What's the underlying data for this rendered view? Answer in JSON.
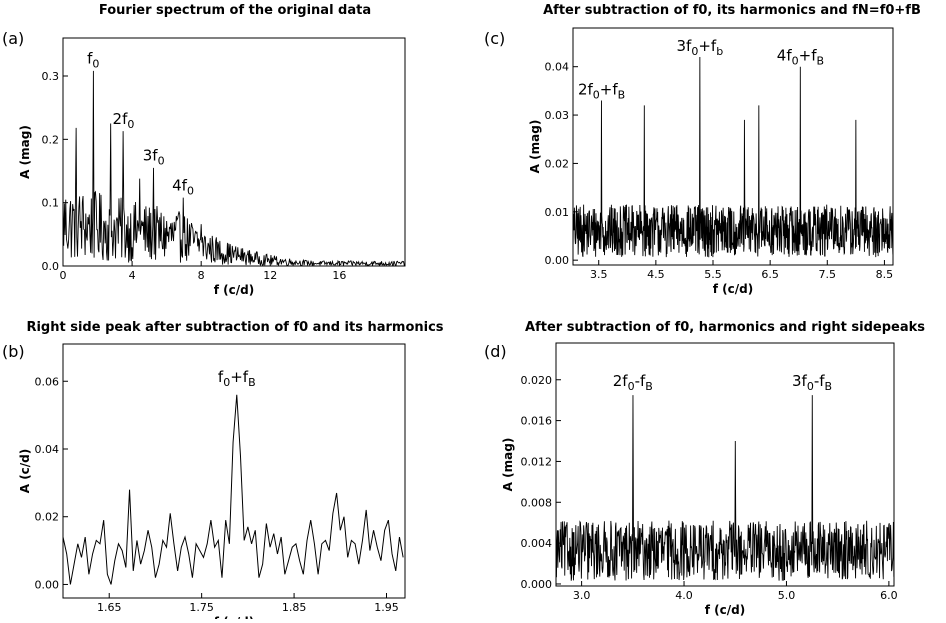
{
  "chart_data": [
    {
      "type": "line",
      "panel": "(a)",
      "title": "Fourier spectrum of the original data",
      "xlabel": "f (c/d)",
      "ylabel": "A (mag)",
      "xlim": [
        0,
        19.8
      ],
      "ylim": [
        0,
        0.36
      ],
      "xticks": [
        0,
        4,
        8,
        12,
        16
      ],
      "yticks": [
        0.0,
        0.1,
        0.2,
        0.3
      ],
      "x_tick_labels": [
        "0",
        "4",
        "8",
        "12",
        "16"
      ],
      "y_tick_labels": [
        "0.0",
        "0.1",
        "0.2",
        "0.3"
      ],
      "grid": false,
      "noise": {
        "x_start": 0.0,
        "x_end": 19.8,
        "step": 0.04,
        "decay": true,
        "amplitude": 0.13,
        "tail_floor": 0.008
      },
      "peaks": [
        {
          "x": 0.75,
          "y": 0.218
        },
        {
          "x": 1.75,
          "y": 0.308
        },
        {
          "x": 2.75,
          "y": 0.225
        },
        {
          "x": 3.5,
          "y": 0.213
        },
        {
          "x": 4.45,
          "y": 0.138
        },
        {
          "x": 5.25,
          "y": 0.155
        },
        {
          "x": 6.95,
          "y": 0.108
        },
        {
          "x": 8.0,
          "y": 0.066
        }
      ],
      "annotations": [
        {
          "base": "f",
          "sub": "0",
          "post": "",
          "post_sub": "",
          "x": 1.75,
          "y": 0.31
        },
        {
          "base": "2f",
          "sub": "0",
          "post": "",
          "post_sub": "",
          "x": 3.5,
          "y": 0.215
        },
        {
          "base": "3f",
          "sub": "0",
          "post": "",
          "post_sub": "",
          "x": 5.25,
          "y": 0.157
        },
        {
          "base": "4f",
          "sub": "0",
          "post": "",
          "post_sub": "",
          "x": 6.95,
          "y": 0.11
        }
      ]
    },
    {
      "type": "line",
      "panel": "(c)",
      "title": "After subtraction of f0, its harmonics and fN=f0+fB",
      "xlabel": "f (c/d)",
      "ylabel": "A (mag)",
      "xlim": [
        3.05,
        8.65
      ],
      "ylim": [
        -0.001,
        0.048
      ],
      "xticks": [
        3.5,
        4.5,
        5.5,
        6.5,
        7.5,
        8.5
      ],
      "yticks": [
        0.0,
        0.01,
        0.02,
        0.03,
        0.04
      ],
      "x_tick_labels": [
        "3.5",
        "4.5",
        "5.5",
        "6.5",
        "7.5",
        "8.5"
      ],
      "y_tick_labels": [
        "0.00",
        "0.01",
        "0.02",
        "0.03",
        "0.04"
      ],
      "grid": false,
      "noise": {
        "x_start": 3.05,
        "x_end": 8.65,
        "step": 0.006,
        "decay": false,
        "amplitude": 0.0115,
        "tail_floor": 0.001
      },
      "peaks": [
        {
          "x": 3.55,
          "y": 0.033
        },
        {
          "x": 4.3,
          "y": 0.032
        },
        {
          "x": 5.27,
          "y": 0.042
        },
        {
          "x": 6.05,
          "y": 0.029
        },
        {
          "x": 6.3,
          "y": 0.032
        },
        {
          "x": 7.03,
          "y": 0.04
        },
        {
          "x": 8.0,
          "y": 0.029
        }
      ],
      "annotations": [
        {
          "base": "2f",
          "sub": "0",
          "post": "+f",
          "post_sub": "B",
          "x": 3.55,
          "y": 0.033
        },
        {
          "base": "3f",
          "sub": "0",
          "post": "+f",
          "post_sub": "b",
          "x": 5.27,
          "y": 0.042
        },
        {
          "base": "4f",
          "sub": "0",
          "post": "+f",
          "post_sub": "B",
          "x": 7.03,
          "y": 0.04
        }
      ]
    },
    {
      "type": "line",
      "panel": "(b)",
      "title": "Right side peak after subtraction of f0 and its harmonics",
      "xlabel": "f (c/d)",
      "ylabel": "A (c/d)",
      "xlim": [
        1.6,
        1.97
      ],
      "ylim": [
        -0.004,
        0.071
      ],
      "xticks": [
        1.65,
        1.75,
        1.85,
        1.95
      ],
      "yticks": [
        0.0,
        0.02,
        0.04,
        0.06
      ],
      "x_tick_labels": [
        "1.65",
        "1.75",
        "1.85",
        "1.95"
      ],
      "y_tick_labels": [
        "0.00",
        "0.02",
        "0.04",
        "0.06"
      ],
      "grid": false,
      "x": [
        1.6,
        1.604,
        1.608,
        1.612,
        1.616,
        1.62,
        1.624,
        1.628,
        1.632,
        1.636,
        1.64,
        1.644,
        1.648,
        1.652,
        1.656,
        1.66,
        1.664,
        1.668,
        1.672,
        1.676,
        1.68,
        1.684,
        1.688,
        1.692,
        1.696,
        1.7,
        1.704,
        1.708,
        1.712,
        1.716,
        1.72,
        1.724,
        1.728,
        1.732,
        1.736,
        1.74,
        1.744,
        1.748,
        1.752,
        1.756,
        1.76,
        1.764,
        1.768,
        1.772,
        1.776,
        1.78,
        1.784,
        1.788,
        1.792,
        1.796,
        1.8,
        1.804,
        1.808,
        1.812,
        1.816,
        1.82,
        1.824,
        1.828,
        1.832,
        1.836,
        1.84,
        1.844,
        1.848,
        1.852,
        1.856,
        1.86,
        1.864,
        1.868,
        1.872,
        1.876,
        1.88,
        1.884,
        1.888,
        1.892,
        1.896,
        1.9,
        1.904,
        1.908,
        1.912,
        1.916,
        1.92,
        1.924,
        1.928,
        1.932,
        1.936,
        1.94,
        1.944,
        1.948,
        1.952,
        1.956,
        1.96,
        1.964,
        1.968
      ],
      "y": [
        0.014,
        0.009,
        0.0,
        0.006,
        0.012,
        0.008,
        0.014,
        0.003,
        0.009,
        0.013,
        0.012,
        0.019,
        0.003,
        0.0,
        0.007,
        0.012,
        0.01,
        0.005,
        0.028,
        0.004,
        0.013,
        0.006,
        0.01,
        0.016,
        0.011,
        0.002,
        0.006,
        0.013,
        0.011,
        0.021,
        0.012,
        0.004,
        0.011,
        0.014,
        0.009,
        0.002,
        0.012,
        0.01,
        0.008,
        0.012,
        0.019,
        0.011,
        0.013,
        0.002,
        0.019,
        0.012,
        0.042,
        0.056,
        0.038,
        0.013,
        0.017,
        0.012,
        0.016,
        0.002,
        0.006,
        0.018,
        0.011,
        0.015,
        0.009,
        0.014,
        0.003,
        0.007,
        0.011,
        0.012,
        0.007,
        0.003,
        0.013,
        0.019,
        0.012,
        0.003,
        0.012,
        0.013,
        0.01,
        0.021,
        0.027,
        0.016,
        0.02,
        0.008,
        0.013,
        0.012,
        0.006,
        0.013,
        0.022,
        0.01,
        0.016,
        0.011,
        0.007,
        0.016,
        0.019,
        0.009,
        0.004,
        0.014,
        0.008
      ],
      "annotations": [
        {
          "base": "f",
          "sub": "0",
          "post": "+f",
          "post_sub": "B",
          "x": 1.788,
          "y": 0.058
        }
      ]
    },
    {
      "type": "line",
      "panel": "(d)",
      "title": "After subtraction of f0, harmonics and right sidepeaks",
      "xlabel": "f (c/d)",
      "ylabel": "A (mag)",
      "xlim": [
        2.75,
        6.05
      ],
      "ylim": [
        -0.0002,
        0.0236
      ],
      "xticks": [
        3.0,
        4.0,
        5.0,
        6.0
      ],
      "yticks": [
        0.0,
        0.004,
        0.008,
        0.012,
        0.016,
        0.02
      ],
      "x_tick_labels": [
        "3.0",
        "4.0",
        "5.0",
        "6.0"
      ],
      "y_tick_labels": [
        "0.000",
        "0.004",
        "0.008",
        "0.012",
        "0.016",
        "0.020"
      ],
      "grid": false,
      "noise": {
        "x_start": 2.75,
        "x_end": 6.05,
        "step": 0.0045,
        "decay": false,
        "amplitude": 0.0062,
        "tail_floor": 0.0002
      },
      "peaks": [
        {
          "x": 3.5,
          "y": 0.0185
        },
        {
          "x": 4.5,
          "y": 0.014
        },
        {
          "x": 5.25,
          "y": 0.0185
        }
      ],
      "annotations": [
        {
          "base": "2f",
          "sub": "0",
          "post": "-f",
          "post_sub": "B",
          "x": 3.5,
          "y": 0.0188
        },
        {
          "base": "3f",
          "sub": "0",
          "post": "-f",
          "post_sub": "B",
          "x": 5.25,
          "y": 0.0188
        }
      ]
    }
  ]
}
